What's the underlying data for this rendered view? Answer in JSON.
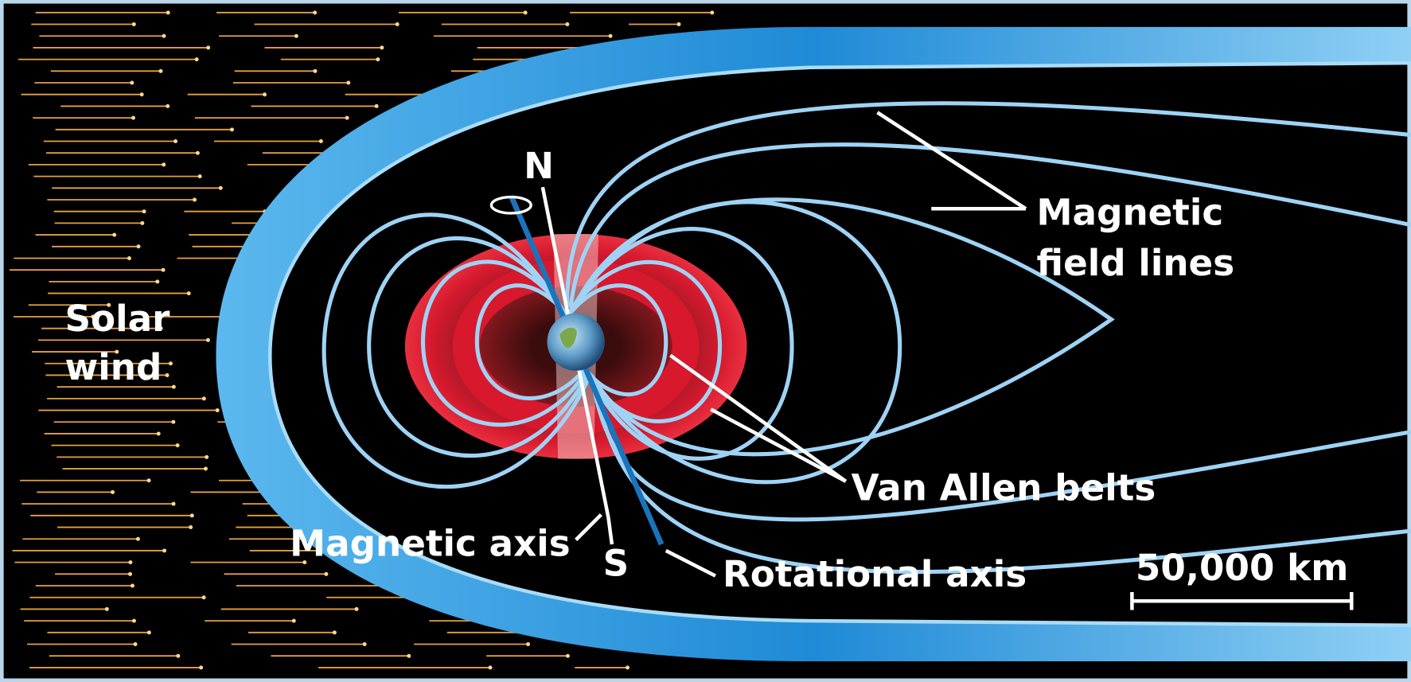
{
  "labels": {
    "solar_wind": [
      "Solar",
      "wind"
    ],
    "north": "N",
    "south": "S",
    "magnetic_field_lines": [
      "Magnetic",
      "field lines"
    ],
    "van_allen_belts": "Van Allen belts",
    "magnetic_axis": "Magnetic axis",
    "rotational_axis": "Rotational axis",
    "scale_bar": "50,000 km"
  }
}
